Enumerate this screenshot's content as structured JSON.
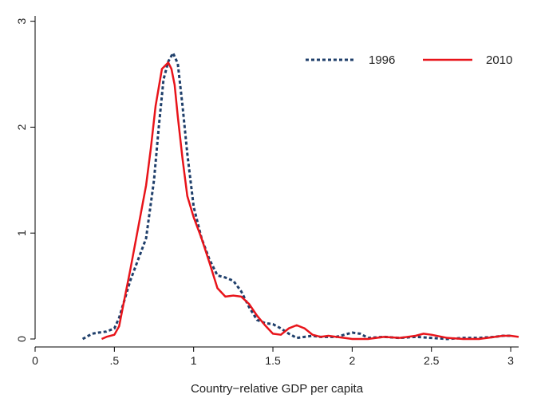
{
  "chart_data": {
    "type": "line",
    "title": "",
    "xlabel": "Country−relative GDP per capita",
    "ylabel": "",
    "xlim": [
      0,
      3.05
    ],
    "ylim": [
      0,
      3.05
    ],
    "x_ticks": [
      0,
      0.5,
      1,
      1.5,
      2,
      2.5,
      3
    ],
    "x_tick_labels": [
      "0",
      ".5",
      "1",
      "1.5",
      "2",
      "2.5",
      "3"
    ],
    "y_ticks": [
      0,
      1,
      2,
      3
    ],
    "y_tick_labels": [
      "0",
      "1",
      "2",
      "3"
    ],
    "grid": false,
    "legend_position": "top-right",
    "series": [
      {
        "name": "1996",
        "color": "#1f3f6b",
        "dash": "dashed",
        "x": [
          0.3,
          0.36,
          0.4,
          0.45,
          0.5,
          0.53,
          0.56,
          0.6,
          0.65,
          0.7,
          0.75,
          0.78,
          0.81,
          0.84,
          0.87,
          0.9,
          0.93,
          0.96,
          1.0,
          1.05,
          1.1,
          1.15,
          1.2,
          1.25,
          1.3,
          1.35,
          1.4,
          1.45,
          1.5,
          1.55,
          1.6,
          1.65,
          1.7,
          1.75,
          1.8,
          1.85,
          1.9,
          1.95,
          2.0,
          2.05,
          2.1,
          2.2,
          2.3,
          2.4,
          2.5,
          2.6,
          2.7,
          2.8,
          2.9,
          2.95,
          3.0
        ],
        "y": [
          0.0,
          0.05,
          0.06,
          0.07,
          0.1,
          0.2,
          0.35,
          0.55,
          0.75,
          0.95,
          1.5,
          2.0,
          2.45,
          2.62,
          2.7,
          2.6,
          2.2,
          1.75,
          1.25,
          0.95,
          0.75,
          0.6,
          0.58,
          0.55,
          0.45,
          0.3,
          0.18,
          0.15,
          0.14,
          0.1,
          0.05,
          0.01,
          0.02,
          0.03,
          0.02,
          0.02,
          0.02,
          0.04,
          0.06,
          0.05,
          0.01,
          0.02,
          0.01,
          0.02,
          0.01,
          0.0,
          0.01,
          0.01,
          0.02,
          0.03,
          0.03
        ]
      },
      {
        "name": "2010",
        "color": "#e8141a",
        "dash": "solid",
        "x": [
          0.42,
          0.45,
          0.5,
          0.53,
          0.56,
          0.6,
          0.65,
          0.7,
          0.73,
          0.76,
          0.8,
          0.84,
          0.86,
          0.88,
          0.9,
          0.93,
          0.96,
          1.0,
          1.05,
          1.1,
          1.15,
          1.2,
          1.25,
          1.3,
          1.35,
          1.4,
          1.45,
          1.5,
          1.55,
          1.6,
          1.65,
          1.7,
          1.75,
          1.8,
          1.85,
          1.9,
          1.95,
          2.0,
          2.1,
          2.2,
          2.3,
          2.4,
          2.45,
          2.5,
          2.6,
          2.7,
          2.8,
          2.9,
          2.95,
          3.0,
          3.05
        ],
        "y": [
          0.0,
          0.02,
          0.04,
          0.12,
          0.35,
          0.65,
          1.05,
          1.45,
          1.8,
          2.2,
          2.55,
          2.61,
          2.55,
          2.4,
          2.1,
          1.7,
          1.35,
          1.15,
          0.95,
          0.72,
          0.48,
          0.4,
          0.41,
          0.4,
          0.33,
          0.22,
          0.13,
          0.05,
          0.04,
          0.1,
          0.13,
          0.1,
          0.04,
          0.02,
          0.03,
          0.02,
          0.01,
          0.0,
          0.0,
          0.02,
          0.01,
          0.03,
          0.05,
          0.04,
          0.01,
          0.0,
          0.0,
          0.02,
          0.03,
          0.03,
          0.02
        ]
      }
    ]
  }
}
